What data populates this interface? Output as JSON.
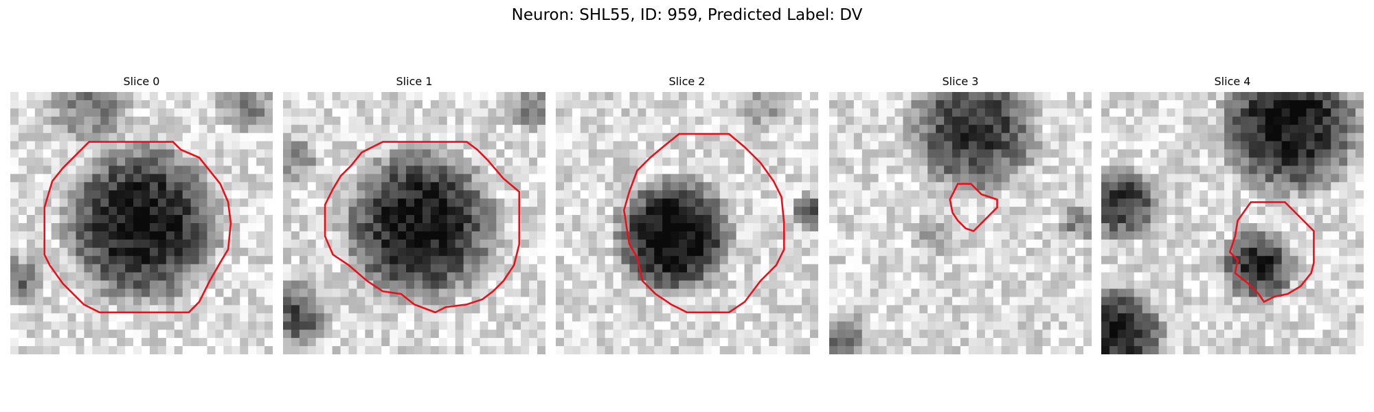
{
  "figure": {
    "title": "Neuron: SHL55, ID: 959, Predicted Label: DV"
  },
  "panels": [
    {
      "title": "Slice 0"
    },
    {
      "title": "Slice 1"
    },
    {
      "title": "Slice 2"
    },
    {
      "title": "Slice 3"
    },
    {
      "title": "Slice 4"
    }
  ],
  "colors": {
    "contour": "#e8111a",
    "background": "#ffffff"
  }
}
